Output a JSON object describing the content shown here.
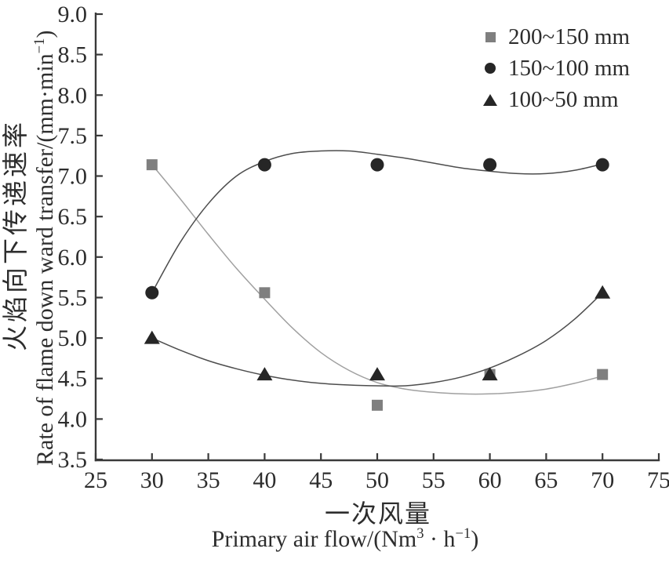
{
  "chart_data": {
    "type": "scatter",
    "title": "",
    "xlabel_cn": "一次风量",
    "xlabel_en": {
      "pre": "Primary air flow/(Nm",
      "sup1": "3",
      "mid": " · h",
      "sup2": "−1",
      "post": ")"
    },
    "ylabel_cn": "火焰向下传递速率",
    "ylabel_en": {
      "pre": "Rate of flame down ward transfer/(mm·min",
      "sup": "−1",
      "post": ")"
    },
    "xlim": [
      25,
      75
    ],
    "ylim": [
      3.5,
      9.0
    ],
    "xticks": [
      25,
      30,
      35,
      40,
      45,
      50,
      55,
      60,
      65,
      70,
      75
    ],
    "yticks": [
      3.5,
      4.0,
      4.5,
      5.0,
      5.5,
      6.0,
      6.5,
      7.0,
      7.5,
      8.0,
      8.5,
      9.0
    ],
    "grid": false,
    "legend_position": "top-right",
    "axis_color": "#3a3a3a",
    "text_color": "#2d2d2d",
    "background_color": "#ffffff",
    "x": [
      30,
      40,
      50,
      60,
      70
    ],
    "series": [
      {
        "name": "200~150 mm",
        "marker": "square",
        "marker_color": "#7f7f7f",
        "curve_color": "#a0a0a0",
        "values": [
          7.14,
          5.56,
          4.17,
          4.55,
          4.55
        ],
        "fit_curve": [
          [
            30,
            7.14
          ],
          [
            32.5,
            6.72
          ],
          [
            35,
            6.28
          ],
          [
            37.5,
            5.86
          ],
          [
            40,
            5.48
          ],
          [
            42.5,
            5.12
          ],
          [
            45,
            4.82
          ],
          [
            47.5,
            4.6
          ],
          [
            50,
            4.45
          ],
          [
            52.5,
            4.37
          ],
          [
            55,
            4.33
          ],
          [
            57.5,
            4.31
          ],
          [
            60,
            4.31
          ],
          [
            62.5,
            4.33
          ],
          [
            65,
            4.37
          ],
          [
            67.5,
            4.44
          ],
          [
            70,
            4.53
          ]
        ]
      },
      {
        "name": "150~100 mm",
        "marker": "circle",
        "marker_color": "#262626",
        "curve_color": "#4d4d4d",
        "values": [
          5.56,
          7.14,
          7.14,
          7.14,
          7.14
        ],
        "fit_curve": [
          [
            30,
            5.56
          ],
          [
            32.5,
            6.18
          ],
          [
            35,
            6.66
          ],
          [
            37.5,
            7.0
          ],
          [
            40,
            7.18
          ],
          [
            42.5,
            7.28
          ],
          [
            45,
            7.31
          ],
          [
            47.5,
            7.31
          ],
          [
            50,
            7.27
          ],
          [
            52.5,
            7.22
          ],
          [
            55,
            7.16
          ],
          [
            57.5,
            7.1
          ],
          [
            60,
            7.06
          ],
          [
            62.5,
            7.03
          ],
          [
            65,
            7.03
          ],
          [
            67.5,
            7.07
          ],
          [
            70,
            7.15
          ]
        ]
      },
      {
        "name": "100~50 mm",
        "marker": "triangle",
        "marker_color": "#262626",
        "curve_color": "#4d4d4d",
        "values": [
          5.0,
          4.55,
          4.55,
          4.55,
          5.56
        ],
        "fit_curve": [
          [
            30,
            5.0
          ],
          [
            32.5,
            4.85
          ],
          [
            35,
            4.72
          ],
          [
            37.5,
            4.62
          ],
          [
            40,
            4.54
          ],
          [
            42.5,
            4.48
          ],
          [
            45,
            4.44
          ],
          [
            47.5,
            4.42
          ],
          [
            50,
            4.41
          ],
          [
            52.5,
            4.41
          ],
          [
            55,
            4.45
          ],
          [
            57.5,
            4.52
          ],
          [
            60,
            4.63
          ],
          [
            62.5,
            4.78
          ],
          [
            65,
            4.97
          ],
          [
            67.5,
            5.23
          ],
          [
            70,
            5.56
          ]
        ]
      }
    ]
  }
}
